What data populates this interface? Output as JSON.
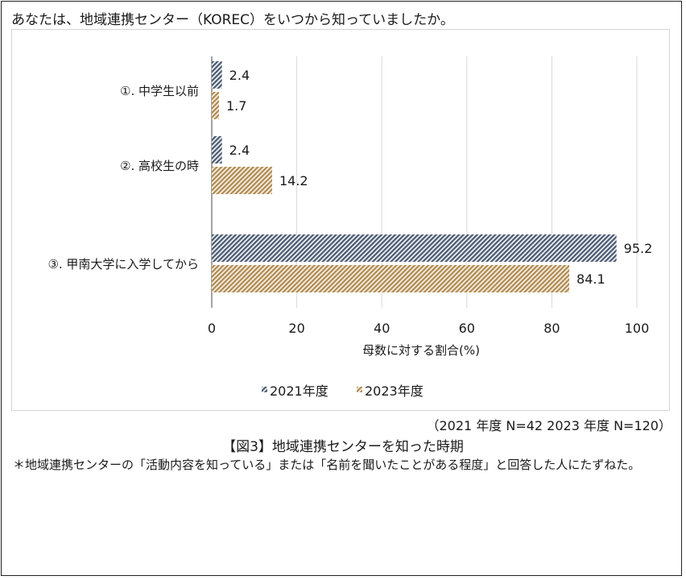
{
  "question": "あなたは、地域連携センター（KOREC）をいつから知っていましたか。",
  "note_n": "（2021 年度  N=42   2023 年度  N=120）",
  "caption": "【図3】地域連携センターを知った時期",
  "footnote": "＊地域連携センターの「活動内容を知っている」または「名前を聞いたことがある程度」と回答した人にたずねた。",
  "colors": {
    "series_2021": "#4a5a70",
    "series_2023": "#b08a52",
    "grid": "#d9d9d9",
    "axis": "#444444"
  },
  "chart_data": {
    "type": "bar",
    "orientation": "horizontal",
    "categories": [
      "①. 中学生以前",
      "②. 高校生の時",
      "③. 甲南大学に入学してから"
    ],
    "series": [
      {
        "name": "2021年度",
        "values": [
          2.4,
          2.4,
          95.2
        ],
        "pattern": "diagonal-hatch-dark"
      },
      {
        "name": "2023年度",
        "values": [
          1.7,
          14.2,
          84.1
        ],
        "pattern": "diagonal-hatch-tan"
      }
    ],
    "xlabel": "母数に対する割合(%)",
    "xlim": [
      0,
      100
    ],
    "xticks": [
      0,
      20,
      40,
      60,
      80,
      100
    ],
    "grid": true,
    "legend": "bottom-center"
  }
}
